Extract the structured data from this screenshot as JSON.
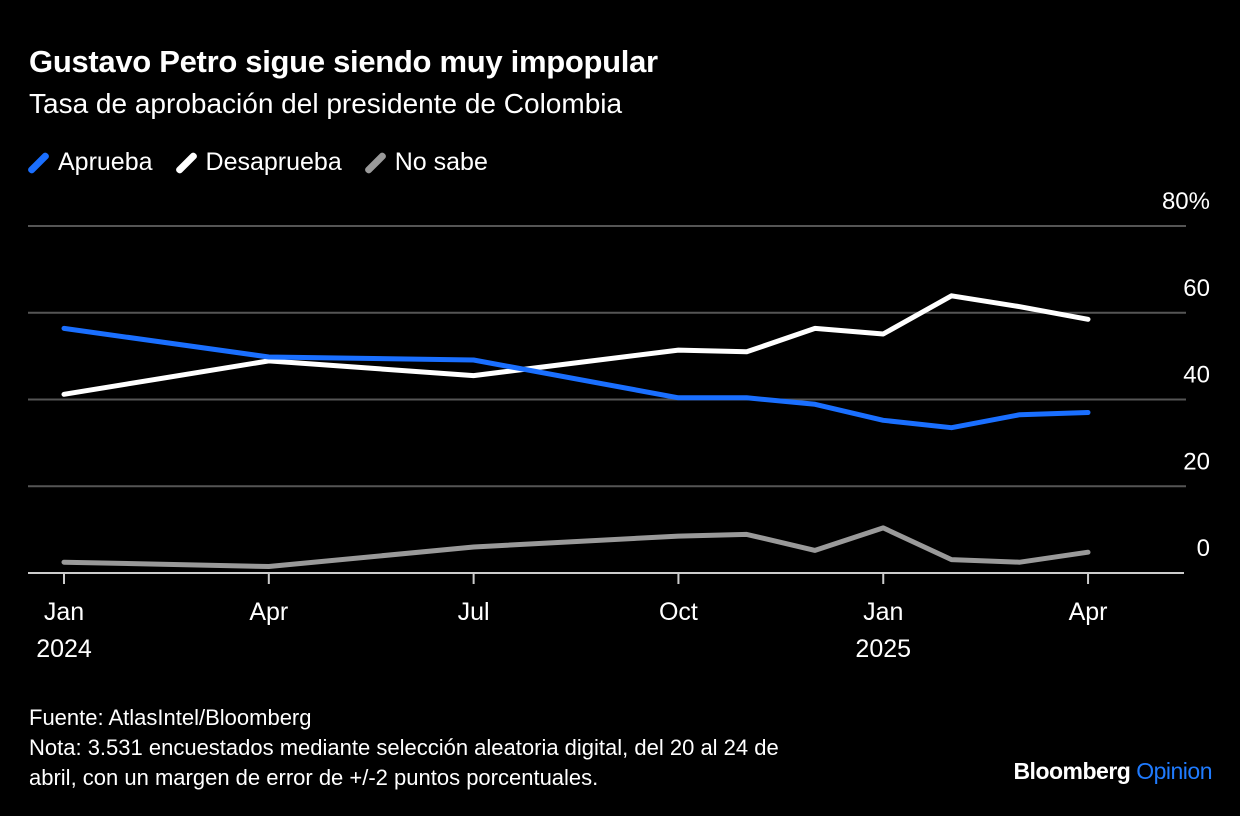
{
  "title": "Gustavo Petro sigue siendo muy impopular",
  "subtitle": "Tasa de aprobación del presidente de Colombia",
  "colors": {
    "background": "#000000",
    "aprueba": "#1a6fff",
    "desaprueba": "#ffffff",
    "no_sabe": "#9a9a9a",
    "grid": "#555555"
  },
  "chart_data": {
    "type": "line",
    "x": [
      "2024-01",
      "2024-04",
      "2024-07",
      "2024-10",
      "2024-11",
      "2024-12",
      "2025-01",
      "2025-02",
      "2025-03",
      "2025-04"
    ],
    "series": [
      {
        "name": "Aprueba",
        "values": [
          56.4,
          49.8,
          49.1,
          40.4,
          40.4,
          38.9,
          35.2,
          33.5,
          36.5,
          37.0
        ]
      },
      {
        "name": "Desaprueba",
        "values": [
          41.2,
          48.9,
          45.5,
          51.4,
          51.0,
          56.4,
          55.1,
          63.9,
          61.4,
          58.5
        ]
      },
      {
        "name": "No sabe",
        "values": [
          2.5,
          1.5,
          6.0,
          8.5,
          8.9,
          5.2,
          10.4,
          3.1,
          2.5,
          4.8
        ]
      }
    ],
    "ylim": [
      0,
      80
    ],
    "yticks": [
      {
        "value": 0,
        "label": "0"
      },
      {
        "value": 20,
        "label": "20"
      },
      {
        "value": 40,
        "label": "40"
      },
      {
        "value": 60,
        "label": "60"
      },
      {
        "value": 80,
        "label": "80%"
      }
    ],
    "xticks": [
      {
        "date": "2024-01",
        "label": "Jan",
        "year": "2024"
      },
      {
        "date": "2024-04",
        "label": "Apr",
        "year": ""
      },
      {
        "date": "2024-07",
        "label": "Jul",
        "year": ""
      },
      {
        "date": "2024-10",
        "label": "Oct",
        "year": ""
      },
      {
        "date": "2025-01",
        "label": "Jan",
        "year": "2025"
      },
      {
        "date": "2025-04",
        "label": "Apr",
        "year": ""
      }
    ],
    "grid": true,
    "legend_position": "top-left"
  },
  "footer": {
    "source": "Fuente: AtlasIntel/Bloomberg",
    "note_line1": "Nota: 3.531 encuestados mediante selección aleatoria digital, del 20 al 24 de",
    "note_line2": "abril, con un margen de error de +/-2 puntos porcentuales."
  },
  "logo": {
    "brand": "Bloomberg",
    "section": "Opinion"
  }
}
